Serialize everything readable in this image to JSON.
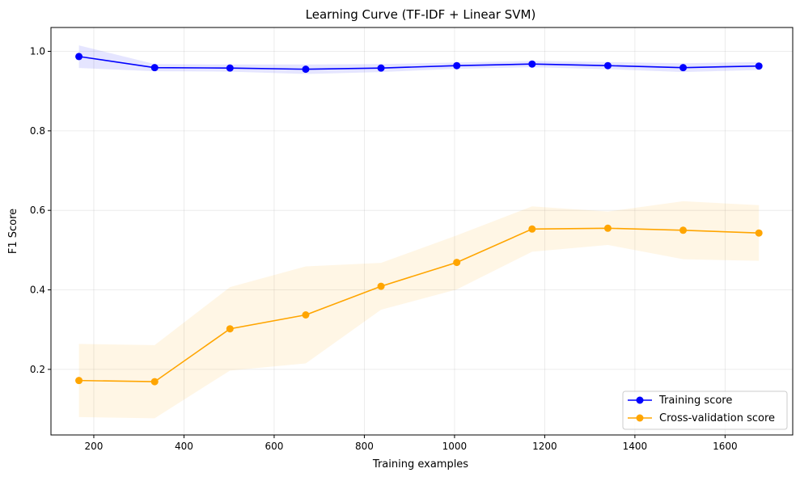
{
  "chart_data": {
    "type": "line",
    "title": "Learning Curve (TF-IDF + Linear SVM)",
    "xlabel": "Training examples",
    "ylabel": "F1 Score",
    "xlim": [
      105,
      1750
    ],
    "ylim": [
      0.035,
      1.06
    ],
    "xticks": [
      200,
      400,
      600,
      800,
      1000,
      1200,
      1400,
      1600
    ],
    "yticks": [
      0.2,
      0.4,
      0.6,
      0.8,
      1.0
    ],
    "grid": true,
    "legend_position": "lower-right",
    "x": [
      167,
      335,
      502,
      670,
      837,
      1005,
      1172,
      1340,
      1507,
      1675
    ],
    "series": [
      {
        "name": "Training score",
        "color": "#0000ff",
        "band_color": "#0000ff",
        "values": [
          0.987,
          0.959,
          0.958,
          0.955,
          0.958,
          0.964,
          0.968,
          0.964,
          0.959,
          0.963
        ],
        "upper": [
          1.015,
          0.968,
          0.967,
          0.967,
          0.968,
          0.972,
          0.976,
          0.973,
          0.97,
          0.973
        ],
        "lower": [
          0.958,
          0.95,
          0.949,
          0.943,
          0.948,
          0.956,
          0.96,
          0.955,
          0.948,
          0.953
        ]
      },
      {
        "name": "Cross-validation score",
        "color": "#ffa500",
        "band_color": "#ffa500",
        "values": [
          0.172,
          0.169,
          0.302,
          0.337,
          0.409,
          0.469,
          0.553,
          0.555,
          0.55,
          0.543
        ],
        "upper": [
          0.264,
          0.261,
          0.407,
          0.459,
          0.468,
          0.537,
          0.61,
          0.597,
          0.623,
          0.613
        ],
        "lower": [
          0.08,
          0.077,
          0.197,
          0.215,
          0.35,
          0.401,
          0.496,
          0.513,
          0.477,
          0.473
        ]
      }
    ]
  }
}
